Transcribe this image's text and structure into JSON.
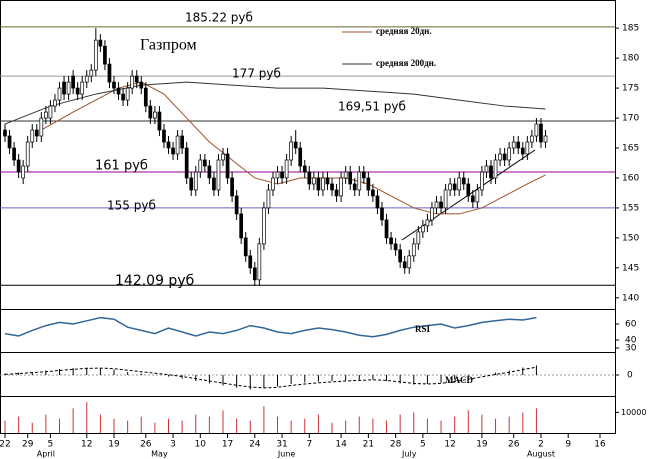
{
  "chart_data": {
    "type": "candlestick",
    "title": "Газпром",
    "xlim": [
      -1.1,
      134.3
    ],
    "xticks": [
      {
        "value": 0,
        "label": "22"
      },
      {
        "value": 5,
        "label": "29"
      },
      {
        "value": 10,
        "label": "5"
      },
      {
        "value": 18,
        "label": "12"
      },
      {
        "value": 24,
        "label": "19"
      },
      {
        "value": 31,
        "label": "26"
      },
      {
        "value": 37,
        "label": "3"
      },
      {
        "value": 43,
        "label": "10"
      },
      {
        "value": 49,
        "label": "17"
      },
      {
        "value": 55,
        "label": "24"
      },
      {
        "value": 61,
        "label": "31"
      },
      {
        "value": 67,
        "label": "7"
      },
      {
        "value": 74,
        "label": "14"
      },
      {
        "value": 80,
        "label": "21"
      },
      {
        "value": 86,
        "label": "28"
      },
      {
        "value": 92,
        "label": "5"
      },
      {
        "value": 98,
        "label": "12"
      },
      {
        "value": 105,
        "label": "19"
      },
      {
        "value": 112,
        "label": "26"
      },
      {
        "value": 118,
        "label": "2"
      },
      {
        "value": 124,
        "label": "9"
      },
      {
        "value": 131,
        "label": "16"
      }
    ],
    "month_labels": [
      {
        "value": 9,
        "label": "April"
      },
      {
        "value": 34,
        "label": "May"
      },
      {
        "value": 62,
        "label": "June"
      },
      {
        "value": 89,
        "label": "July"
      },
      {
        "value": 118,
        "label": "August"
      }
    ],
    "ylim": [
      138.3,
      189.7
    ],
    "yticks": [
      140,
      145,
      150,
      155,
      160,
      165,
      170,
      175,
      180,
      185
    ],
    "open": [
      168,
      167,
      165,
      163,
      160,
      162,
      166,
      168,
      167,
      170,
      170,
      172,
      173,
      176,
      174,
      177,
      175,
      174,
      176,
      177,
      178,
      183,
      182,
      179,
      176,
      175,
      174,
      173,
      175,
      177,
      176,
      175,
      172,
      170,
      171,
      168,
      166,
      165,
      164,
      167,
      165,
      160,
      158,
      161,
      163,
      162,
      160,
      158,
      163,
      164,
      160,
      157,
      154,
      150,
      147,
      145,
      143,
      149,
      155,
      158,
      160,
      161,
      160,
      163,
      166,
      165,
      162,
      161,
      159,
      160,
      158,
      160,
      159,
      158,
      157,
      160,
      161,
      159,
      158,
      161,
      160,
      158,
      157,
      155,
      153,
      150,
      149,
      148,
      146,
      145,
      147,
      149,
      151,
      152,
      153,
      155,
      156,
      155,
      158,
      159,
      158,
      160,
      159,
      157,
      156,
      158,
      161,
      162,
      160,
      163,
      164,
      163,
      165,
      166,
      165,
      164,
      166,
      167,
      169,
      166
    ],
    "high": [
      169,
      168,
      166,
      164,
      163,
      167,
      169,
      169,
      171,
      172,
      173,
      174,
      176,
      177,
      177,
      178,
      176,
      177,
      178,
      179,
      185,
      184,
      183,
      180,
      177,
      176,
      175,
      176,
      178,
      178,
      177,
      176,
      173,
      172,
      172,
      169,
      167,
      166,
      168,
      168,
      166,
      161,
      162,
      164,
      164,
      163,
      161,
      164,
      165,
      165,
      161,
      158,
      155,
      151,
      148,
      146,
      150,
      156,
      159,
      161,
      162,
      162,
      164,
      167,
      168,
      166,
      163,
      162,
      161,
      161,
      161,
      161,
      160,
      159,
      161,
      162,
      162,
      160,
      162,
      162,
      161,
      159,
      158,
      156,
      154,
      151,
      150,
      149,
      147,
      148,
      150,
      152,
      153,
      154,
      156,
      157,
      157,
      159,
      160,
      160,
      161,
      161,
      160,
      158,
      159,
      162,
      163,
      163,
      164,
      165,
      165,
      166,
      167,
      167,
      166,
      167,
      168,
      170,
      170,
      168
    ],
    "low": [
      166,
      164,
      162,
      160,
      159,
      161,
      165,
      166,
      166,
      169,
      169,
      171,
      172,
      173,
      173,
      174,
      173,
      173,
      175,
      176,
      177,
      181,
      178,
      175,
      174,
      173,
      172,
      172,
      174,
      175,
      174,
      171,
      169,
      169,
      167,
      165,
      164,
      163,
      163,
      164,
      159,
      157,
      157,
      160,
      161,
      159,
      157,
      157,
      162,
      159,
      156,
      153,
      149,
      146,
      144,
      142,
      142,
      148,
      154,
      157,
      159,
      159,
      159,
      162,
      164,
      161,
      160,
      158,
      158,
      157,
      157,
      158,
      157,
      156,
      156,
      159,
      158,
      157,
      157,
      159,
      157,
      156,
      154,
      152,
      149,
      148,
      147,
      145,
      144,
      144,
      146,
      148,
      150,
      151,
      152,
      154,
      154,
      154,
      157,
      157,
      157,
      158,
      156,
      155,
      155,
      157,
      160,
      159,
      159,
      162,
      162,
      162,
      164,
      164,
      163,
      163,
      165,
      166,
      165,
      165
    ],
    "close": [
      167,
      165,
      163,
      161,
      162,
      166,
      168,
      167,
      170,
      171,
      172,
      173,
      175,
      174,
      176,
      175,
      174,
      176,
      177,
      178,
      183,
      182,
      179,
      176,
      175,
      174,
      173,
      175,
      177,
      176,
      175,
      172,
      170,
      171,
      168,
      166,
      165,
      164,
      167,
      165,
      160,
      158,
      161,
      163,
      162,
      160,
      158,
      163,
      164,
      160,
      157,
      154,
      150,
      147,
      145,
      143,
      149,
      155,
      158,
      160,
      161,
      160,
      163,
      166,
      165,
      162,
      161,
      159,
      160,
      158,
      160,
      159,
      158,
      157,
      160,
      161,
      159,
      158,
      161,
      160,
      158,
      157,
      155,
      153,
      150,
      149,
      148,
      146,
      145,
      147,
      149,
      151,
      152,
      153,
      155,
      156,
      155,
      158,
      159,
      158,
      160,
      159,
      157,
      156,
      158,
      161,
      162,
      160,
      163,
      164,
      163,
      165,
      166,
      165,
      164,
      166,
      167,
      169,
      166,
      167
    ],
    "levels": [
      {
        "value": 185.22,
        "label": "185.22 руб",
        "color": "#666633"
      },
      {
        "value": 177,
        "label": "177 руб",
        "color": "#999999"
      },
      {
        "value": 169.51,
        "label": "169,51 руб",
        "color": "#333333"
      },
      {
        "value": 161,
        "label": "161 руб",
        "color": "#990099"
      },
      {
        "value": 155,
        "label": "155 руб",
        "color": "#6666cc"
      },
      {
        "value": 142.09,
        "label": "142.09 руб",
        "color": "#000000"
      }
    ],
    "series": [
      {
        "name": "средняя 20дн.",
        "color": "#a0522d",
        "x": [
          8,
          15,
          20,
          25,
          30,
          35,
          40,
          45,
          50,
          55,
          60,
          65,
          70,
          75,
          80,
          85,
          90,
          95,
          100,
          105,
          110,
          115,
          119
        ],
        "values": [
          168,
          171,
          173,
          175,
          176,
          174,
          170,
          166,
          163,
          160,
          159,
          160,
          160,
          160,
          159,
          157,
          155,
          154,
          154,
          155,
          157,
          159,
          160.5
        ]
      },
      {
        "name": "средняя 200дн.",
        "color": "#333333",
        "x": [
          0,
          10,
          20,
          30,
          40,
          50,
          60,
          70,
          80,
          90,
          100,
          110,
          119
        ],
        "values": [
          169,
          172,
          174,
          175.5,
          176,
          175.5,
          175,
          175,
          174.5,
          174,
          173,
          172,
          171.5
        ]
      }
    ],
    "rsi": {
      "name": "RSI",
      "color": "#336699",
      "ylim": [
        25,
        75
      ],
      "yticks": [
        60,
        40,
        30
      ],
      "x": [
        0,
        3,
        6,
        9,
        12,
        15,
        18,
        21,
        24,
        27,
        30,
        33,
        36,
        39,
        42,
        45,
        48,
        51,
        54,
        57,
        60,
        63,
        66,
        69,
        72,
        75,
        78,
        81,
        84,
        87,
        90,
        93,
        96,
        99,
        102,
        105,
        108,
        111,
        114,
        117
      ],
      "values": [
        48,
        45,
        52,
        58,
        62,
        60,
        64,
        68,
        66,
        56,
        52,
        48,
        55,
        50,
        45,
        50,
        48,
        52,
        58,
        55,
        50,
        48,
        52,
        55,
        53,
        50,
        46,
        44,
        47,
        52,
        56,
        58,
        60,
        55,
        58,
        62,
        64,
        66,
        65,
        68
      ]
    },
    "macd": {
      "name": "MACD",
      "ylim": [
        -7,
        7
      ],
      "yticks": [
        0
      ],
      "x": [
        0,
        3,
        6,
        9,
        12,
        15,
        18,
        21,
        24,
        27,
        30,
        33,
        36,
        39,
        42,
        45,
        48,
        51,
        54,
        57,
        60,
        63,
        66,
        69,
        72,
        75,
        78,
        81,
        84,
        87,
        90,
        93,
        96,
        99,
        102,
        105,
        108,
        111,
        114,
        117
      ],
      "histogram": [
        0.5,
        0.8,
        1.0,
        1.5,
        2.0,
        2.3,
        2.5,
        2.2,
        1.8,
        1.0,
        0.5,
        0,
        -0.5,
        -1.2,
        -2.0,
        -2.8,
        -3.5,
        -4.2,
        -4.8,
        -4.5,
        -3.8,
        -3,
        -2.5,
        -2.2,
        -2,
        -1.8,
        -1.6,
        -1.5,
        -2,
        -2.8,
        -3.2,
        -3,
        -2.5,
        -1.5,
        -0.8,
        0,
        0.8,
        1.5,
        2.5,
        3.2
      ],
      "signal": [
        0.2,
        0.5,
        0.8,
        1.1,
        1.5,
        1.9,
        2.2,
        2.3,
        2.1,
        1.6,
        1.1,
        0.6,
        0.1,
        -0.5,
        -1.2,
        -2.0,
        -2.7,
        -3.4,
        -4.0,
        -4.3,
        -4.1,
        -3.5,
        -3.0,
        -2.6,
        -2.3,
        -2.0,
        -1.8,
        -1.6,
        -1.8,
        -2.3,
        -2.8,
        -3.0,
        -2.8,
        -2.2,
        -1.4,
        -0.6,
        0.2,
        0.9,
        1.8,
        2.6
      ]
    },
    "volume": {
      "color": "#cc3333",
      "ylim": [
        0,
        17000
      ],
      "yticks": [
        10000
      ],
      "x": [
        0,
        3,
        6,
        9,
        12,
        15,
        18,
        21,
        24,
        27,
        30,
        33,
        36,
        39,
        42,
        45,
        48,
        51,
        54,
        57,
        60,
        63,
        66,
        69,
        72,
        75,
        78,
        81,
        84,
        87,
        90,
        93,
        96,
        99,
        102,
        105,
        108,
        111,
        114,
        117
      ],
      "values": [
        6000,
        8000,
        5000,
        9000,
        7000,
        12000,
        15000,
        9000,
        7000,
        6000,
        8000,
        5000,
        7000,
        6000,
        9000,
        8000,
        11000,
        7000,
        6000,
        13000,
        8000,
        6000,
        7000,
        9000,
        5000,
        6000,
        8000,
        7000,
        6000,
        9000,
        10000,
        7000,
        6000,
        8000,
        11000,
        9000,
        7000,
        8000,
        10000,
        12000
      ]
    }
  }
}
